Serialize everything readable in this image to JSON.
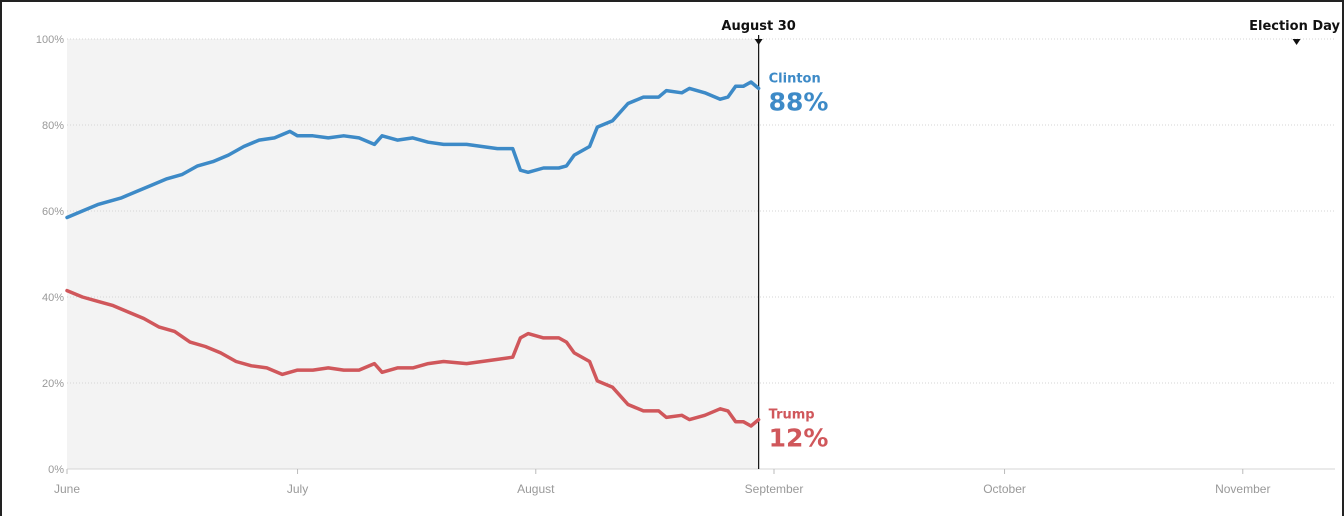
{
  "chart_data": {
    "type": "line",
    "ylim": [
      0,
      100
    ],
    "yticks": [
      0,
      20,
      40,
      60,
      80,
      100
    ],
    "ytick_labels": [
      "0%",
      "20%",
      "40%",
      "60%",
      "80%",
      "100%"
    ],
    "xlim": [
      "2016-06-01",
      "2016-11-13"
    ],
    "xticks": [
      {
        "label": "June",
        "date": "2016-06-01"
      },
      {
        "label": "July",
        "date": "2016-07-01"
      },
      {
        "label": "August",
        "date": "2016-08-01"
      },
      {
        "label": "September",
        "date": "2016-09-01"
      },
      {
        "label": "October",
        "date": "2016-10-01"
      },
      {
        "label": "November",
        "date": "2016-11-01"
      }
    ],
    "markers": [
      {
        "label": "August 30",
        "date": "2016-08-30"
      },
      {
        "label": "Election Day",
        "date": "2016-11-08"
      }
    ],
    "grid": true,
    "shaded_region": [
      "2016-06-01",
      "2016-08-30"
    ],
    "series": [
      {
        "name": "Clinton",
        "color": "#3d8ac7",
        "end_label": "88%",
        "points": [
          [
            "2016-06-01",
            58.5
          ],
          [
            "2016-06-03",
            60
          ],
          [
            "2016-06-05",
            61.5
          ],
          [
            "2016-06-08",
            63
          ],
          [
            "2016-06-10",
            64.5
          ],
          [
            "2016-06-12",
            66
          ],
          [
            "2016-06-14",
            67.5
          ],
          [
            "2016-06-16",
            68.5
          ],
          [
            "2016-06-18",
            70.5
          ],
          [
            "2016-06-20",
            71.5
          ],
          [
            "2016-06-22",
            73
          ],
          [
            "2016-06-24",
            75
          ],
          [
            "2016-06-26",
            76.5
          ],
          [
            "2016-06-28",
            77
          ],
          [
            "2016-06-30",
            78.5
          ],
          [
            "2016-07-01",
            77.5
          ],
          [
            "2016-07-03",
            77.5
          ],
          [
            "2016-07-05",
            77
          ],
          [
            "2016-07-07",
            77.5
          ],
          [
            "2016-07-09",
            77
          ],
          [
            "2016-07-11",
            75.5
          ],
          [
            "2016-07-12",
            77.5
          ],
          [
            "2016-07-14",
            76.5
          ],
          [
            "2016-07-16",
            77
          ],
          [
            "2016-07-18",
            76
          ],
          [
            "2016-07-20",
            75.5
          ],
          [
            "2016-07-23",
            75.5
          ],
          [
            "2016-07-25",
            75
          ],
          [
            "2016-07-27",
            74.5
          ],
          [
            "2016-07-29",
            74.5
          ],
          [
            "2016-07-30",
            69.5
          ],
          [
            "2016-07-31",
            69
          ],
          [
            "2016-08-02",
            70
          ],
          [
            "2016-08-04",
            70
          ],
          [
            "2016-08-05",
            70.5
          ],
          [
            "2016-08-06",
            73
          ],
          [
            "2016-08-08",
            75
          ],
          [
            "2016-08-09",
            79.5
          ],
          [
            "2016-08-11",
            81
          ],
          [
            "2016-08-13",
            85
          ],
          [
            "2016-08-15",
            86.5
          ],
          [
            "2016-08-17",
            86.5
          ],
          [
            "2016-08-18",
            88
          ],
          [
            "2016-08-20",
            87.5
          ],
          [
            "2016-08-21",
            88.5
          ],
          [
            "2016-08-23",
            87.5
          ],
          [
            "2016-08-25",
            86
          ],
          [
            "2016-08-26",
            86.5
          ],
          [
            "2016-08-27",
            89
          ],
          [
            "2016-08-28",
            89
          ],
          [
            "2016-08-29",
            90
          ],
          [
            "2016-08-30",
            88.5
          ]
        ]
      },
      {
        "name": "Trump",
        "color": "#d0575b",
        "end_label": "12%",
        "points": [
          [
            "2016-06-01",
            41.5
          ],
          [
            "2016-06-03",
            40
          ],
          [
            "2016-06-05",
            39
          ],
          [
            "2016-06-07",
            38
          ],
          [
            "2016-06-09",
            36.5
          ],
          [
            "2016-06-11",
            35
          ],
          [
            "2016-06-13",
            33
          ],
          [
            "2016-06-15",
            32
          ],
          [
            "2016-06-17",
            29.5
          ],
          [
            "2016-06-19",
            28.5
          ],
          [
            "2016-06-21",
            27
          ],
          [
            "2016-06-23",
            25
          ],
          [
            "2016-06-25",
            24
          ],
          [
            "2016-06-27",
            23.5
          ],
          [
            "2016-06-29",
            22
          ],
          [
            "2016-07-01",
            23
          ],
          [
            "2016-07-03",
            23
          ],
          [
            "2016-07-05",
            23.5
          ],
          [
            "2016-07-07",
            23
          ],
          [
            "2016-07-09",
            23
          ],
          [
            "2016-07-11",
            24.5
          ],
          [
            "2016-07-12",
            22.5
          ],
          [
            "2016-07-14",
            23.5
          ],
          [
            "2016-07-16",
            23.5
          ],
          [
            "2016-07-18",
            24.5
          ],
          [
            "2016-07-20",
            25
          ],
          [
            "2016-07-23",
            24.5
          ],
          [
            "2016-07-25",
            25
          ],
          [
            "2016-07-27",
            25.5
          ],
          [
            "2016-07-29",
            26
          ],
          [
            "2016-07-30",
            30.5
          ],
          [
            "2016-07-31",
            31.5
          ],
          [
            "2016-08-02",
            30.5
          ],
          [
            "2016-08-04",
            30.5
          ],
          [
            "2016-08-05",
            29.5
          ],
          [
            "2016-08-06",
            27
          ],
          [
            "2016-08-08",
            25
          ],
          [
            "2016-08-09",
            20.5
          ],
          [
            "2016-08-11",
            19
          ],
          [
            "2016-08-13",
            15
          ],
          [
            "2016-08-15",
            13.5
          ],
          [
            "2016-08-17",
            13.5
          ],
          [
            "2016-08-18",
            12
          ],
          [
            "2016-08-20",
            12.5
          ],
          [
            "2016-08-21",
            11.5
          ],
          [
            "2016-08-23",
            12.5
          ],
          [
            "2016-08-25",
            14
          ],
          [
            "2016-08-26",
            13.5
          ],
          [
            "2016-08-27",
            11
          ],
          [
            "2016-08-28",
            11
          ],
          [
            "2016-08-29",
            10
          ],
          [
            "2016-08-30",
            11.5
          ]
        ]
      }
    ]
  }
}
